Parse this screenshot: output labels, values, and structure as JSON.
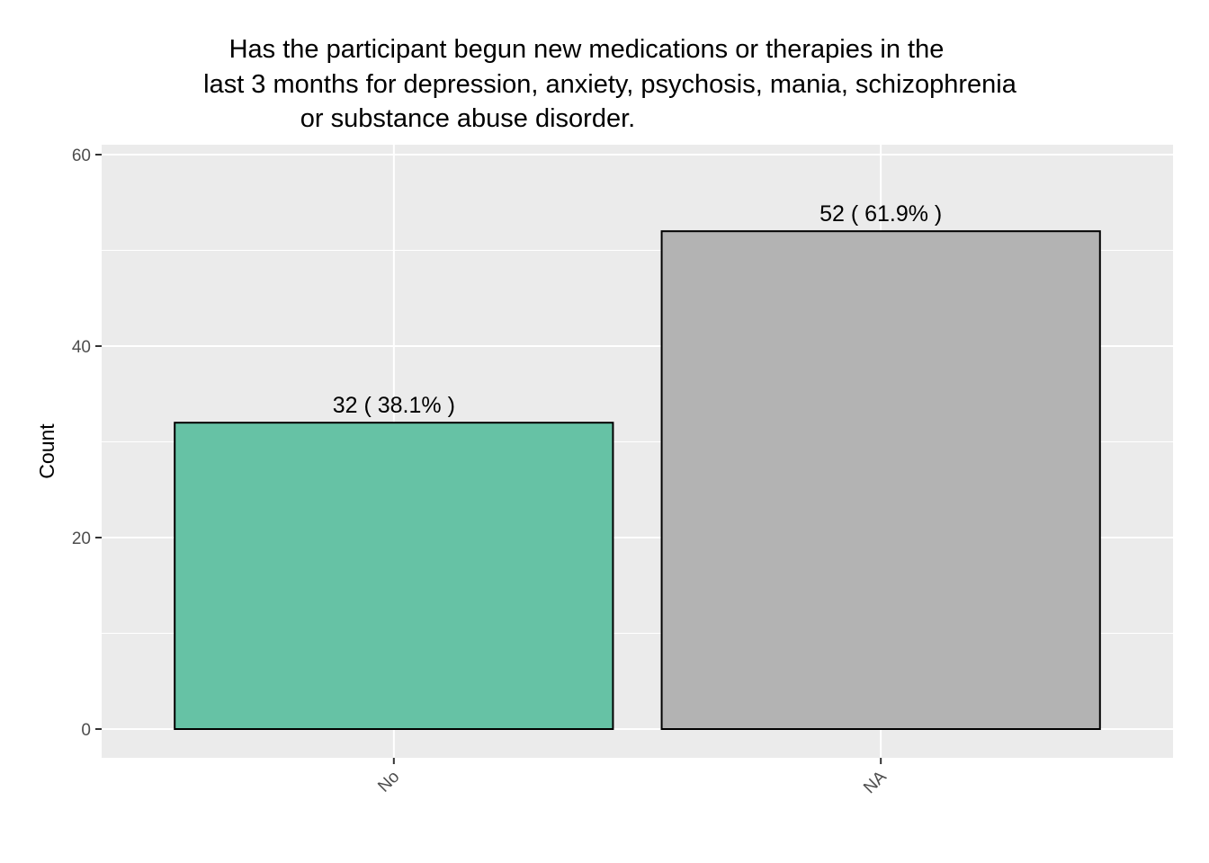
{
  "chart_data": {
    "type": "bar",
    "title_lines": [
      "Has the participant begun new medications or therapies in the",
      "last 3 months for depression, anxiety, psychosis, mania, schizophrenia",
      "or substance abuse disorder."
    ],
    "xlabel": "",
    "ylabel": "Count",
    "categories": [
      "No",
      "NA"
    ],
    "values": [
      32,
      52
    ],
    "bar_labels": [
      "32  ( 38.1% )",
      "52  ( 61.9% )"
    ],
    "bar_colors": [
      "#66c2a5",
      "#b3b3b3"
    ],
    "ylim": [
      0,
      60
    ],
    "y_ticks": [
      0,
      20,
      40,
      60
    ],
    "grid": true,
    "panel_background": "#ebebeb",
    "grid_color": "#ffffff"
  }
}
